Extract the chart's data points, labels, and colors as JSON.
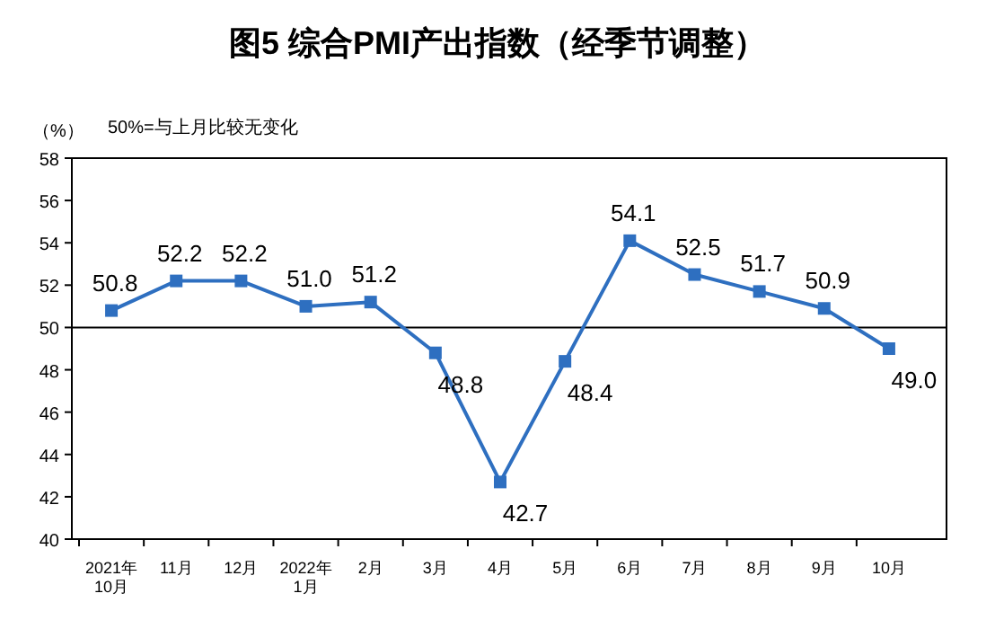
{
  "chart_data": {
    "type": "line",
    "title": "图5  综合PMI产出指数（经季节调整）",
    "ylabel": "（%）",
    "annotations": [
      "50%=与上月比较无变化"
    ],
    "categories": [
      "2021年\n10月",
      "11月",
      "12月",
      "2022年\n1月",
      "2月",
      "3月",
      "4月",
      "5月",
      "6月",
      "7月",
      "8月",
      "9月",
      "10月"
    ],
    "series": [
      {
        "color": "#2e6fc0",
        "values": [
          50.8,
          52.2,
          52.2,
          51.0,
          51.2,
          48.8,
          42.7,
          48.4,
          54.1,
          52.5,
          51.7,
          50.9,
          49.0
        ],
        "value_labels": [
          "50.8",
          "52.2",
          "52.2",
          "51.0",
          "51.2",
          "48.8",
          "42.7",
          "48.4",
          "54.1",
          "52.5",
          "51.7",
          "50.9",
          "49.0"
        ]
      }
    ],
    "ylim": [
      40,
      58
    ],
    "yticks": [
      40,
      42,
      44,
      46,
      48,
      50,
      52,
      54,
      56,
      58
    ],
    "ref_lines": [
      {
        "axis": "y",
        "value": 50,
        "color": "#000000"
      }
    ],
    "marker": "square",
    "line_style": "solid",
    "grid": false
  }
}
